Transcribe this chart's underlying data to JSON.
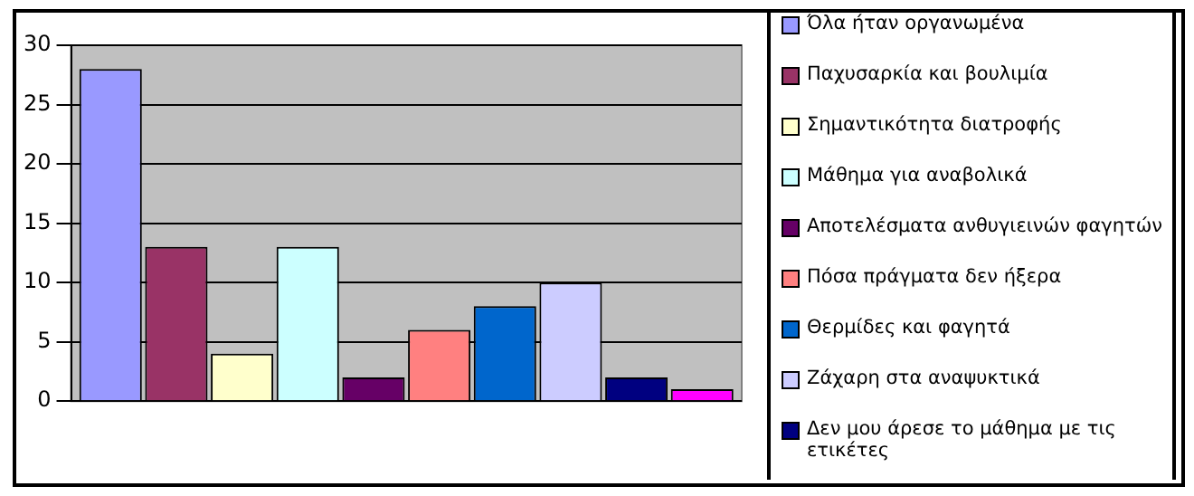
{
  "chart_data": {
    "type": "bar",
    "categories": [
      null
    ],
    "ylim": [
      0,
      30
    ],
    "yticks": [
      0,
      5,
      10,
      15,
      20,
      25,
      30
    ],
    "grid": "y",
    "legend": "right",
    "series": [
      {
        "name": "Όλα ήταν οργανωμένα",
        "color": "#9999ff",
        "values": [
          28
        ]
      },
      {
        "name": "Παχυσαρκία και βουλιμία",
        "color": "#993366",
        "values": [
          13
        ]
      },
      {
        "name": "Σημαντικότητα διατροφής",
        "color": "#ffffcc",
        "values": [
          4
        ]
      },
      {
        "name": "Μάθημα για αναβολικά",
        "color": "#ccffff",
        "values": [
          13
        ]
      },
      {
        "name": "Αποτελέσματα ανθυγιεινών φαγητών",
        "color": "#660066",
        "values": [
          2
        ]
      },
      {
        "name": "Πόσα πράγματα δεν ήξερα",
        "color": "#ff8080",
        "values": [
          6
        ]
      },
      {
        "name": "Θερμίδες και φαγητά",
        "color": "#0066cc",
        "values": [
          8
        ]
      },
      {
        "name": "Ζάχαρη στα αναψυκτικά",
        "color": "#ccccff",
        "values": [
          10
        ]
      },
      {
        "name": "Δεν μου άρεσε το μάθημα με τις ετικέτες",
        "color": "#000080",
        "values": [
          2
        ]
      },
      {
        "color": "#ff00ff",
        "values": [
          1
        ]
      }
    ]
  }
}
